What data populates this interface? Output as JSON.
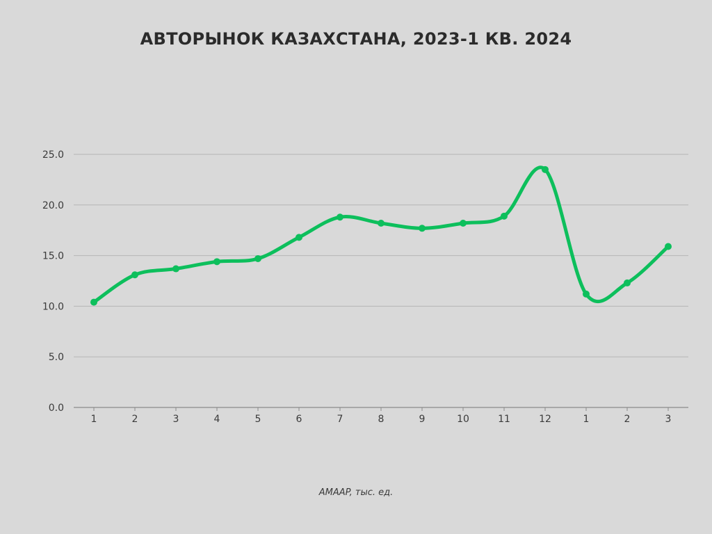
{
  "chart_data": {
    "type": "line",
    "title": "АВТОРЫНОК КАЗАХСТАНА, 2023-1 КВ. 2024",
    "xlabel": "",
    "ylabel": "",
    "categories": [
      "1",
      "2",
      "3",
      "4",
      "5",
      "6",
      "7",
      "8",
      "9",
      "10",
      "11",
      "12",
      "1",
      "2",
      "3"
    ],
    "series": [
      {
        "values": [
          10.4,
          13.1,
          13.7,
          14.4,
          14.7,
          16.8,
          18.8,
          18.2,
          17.7,
          18.2,
          18.9,
          23.5,
          11.2,
          12.3,
          15.9
        ],
        "color": "#0dbf5c"
      }
    ],
    "ylim": [
      0,
      25
    ],
    "yticks": [
      "0.0",
      "5.0",
      "10.0",
      "15.0",
      "20.0",
      "25.0"
    ],
    "grid": true,
    "caption": "AMAAP, тыс. ед."
  }
}
